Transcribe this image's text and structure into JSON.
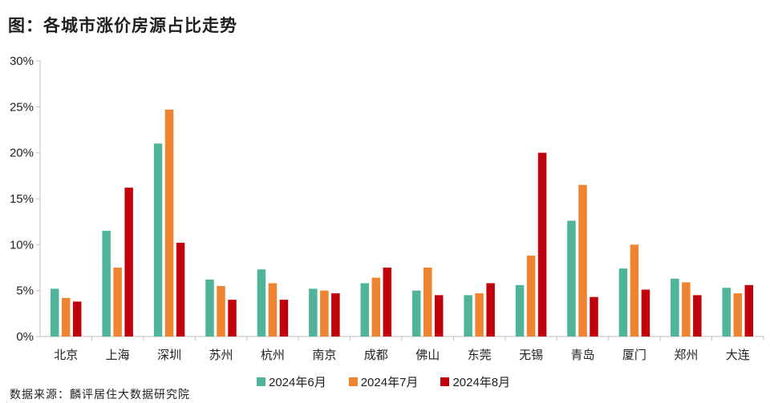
{
  "title": "图：各城市涨价房源占比走势",
  "source": "数据来源：麟评居住大数据研究院",
  "colors": {
    "series": [
      "#4fb49a",
      "#ef8430",
      "#c0000a"
    ],
    "axis": "#bfbfbf"
  },
  "chart_data": {
    "type": "bar",
    "categories": [
      "北京",
      "上海",
      "深圳",
      "苏州",
      "杭州",
      "南京",
      "成都",
      "佛山",
      "东莞",
      "无锡",
      "青岛",
      "厦门",
      "郑州",
      "大连"
    ],
    "series": [
      {
        "name": "2024年6月",
        "values": [
          5.2,
          11.5,
          21.0,
          6.2,
          7.3,
          5.2,
          5.8,
          5.0,
          4.5,
          5.6,
          12.6,
          7.4,
          6.3,
          5.3
        ]
      },
      {
        "name": "2024年7月",
        "values": [
          4.2,
          7.5,
          24.7,
          5.5,
          5.8,
          5.0,
          6.4,
          7.5,
          4.7,
          8.8,
          16.5,
          10.0,
          5.9,
          4.7
        ]
      },
      {
        "name": "2024年8月",
        "values": [
          3.8,
          16.2,
          10.2,
          4.0,
          4.0,
          4.7,
          7.5,
          4.5,
          5.8,
          20.0,
          4.3,
          5.1,
          4.5,
          5.6
        ]
      }
    ],
    "ylim": [
      0,
      30
    ],
    "yticks": [
      "0%",
      "5%",
      "10%",
      "15%",
      "20%",
      "25%",
      "30%"
    ],
    "grid": false,
    "legend_position": "bottom"
  }
}
